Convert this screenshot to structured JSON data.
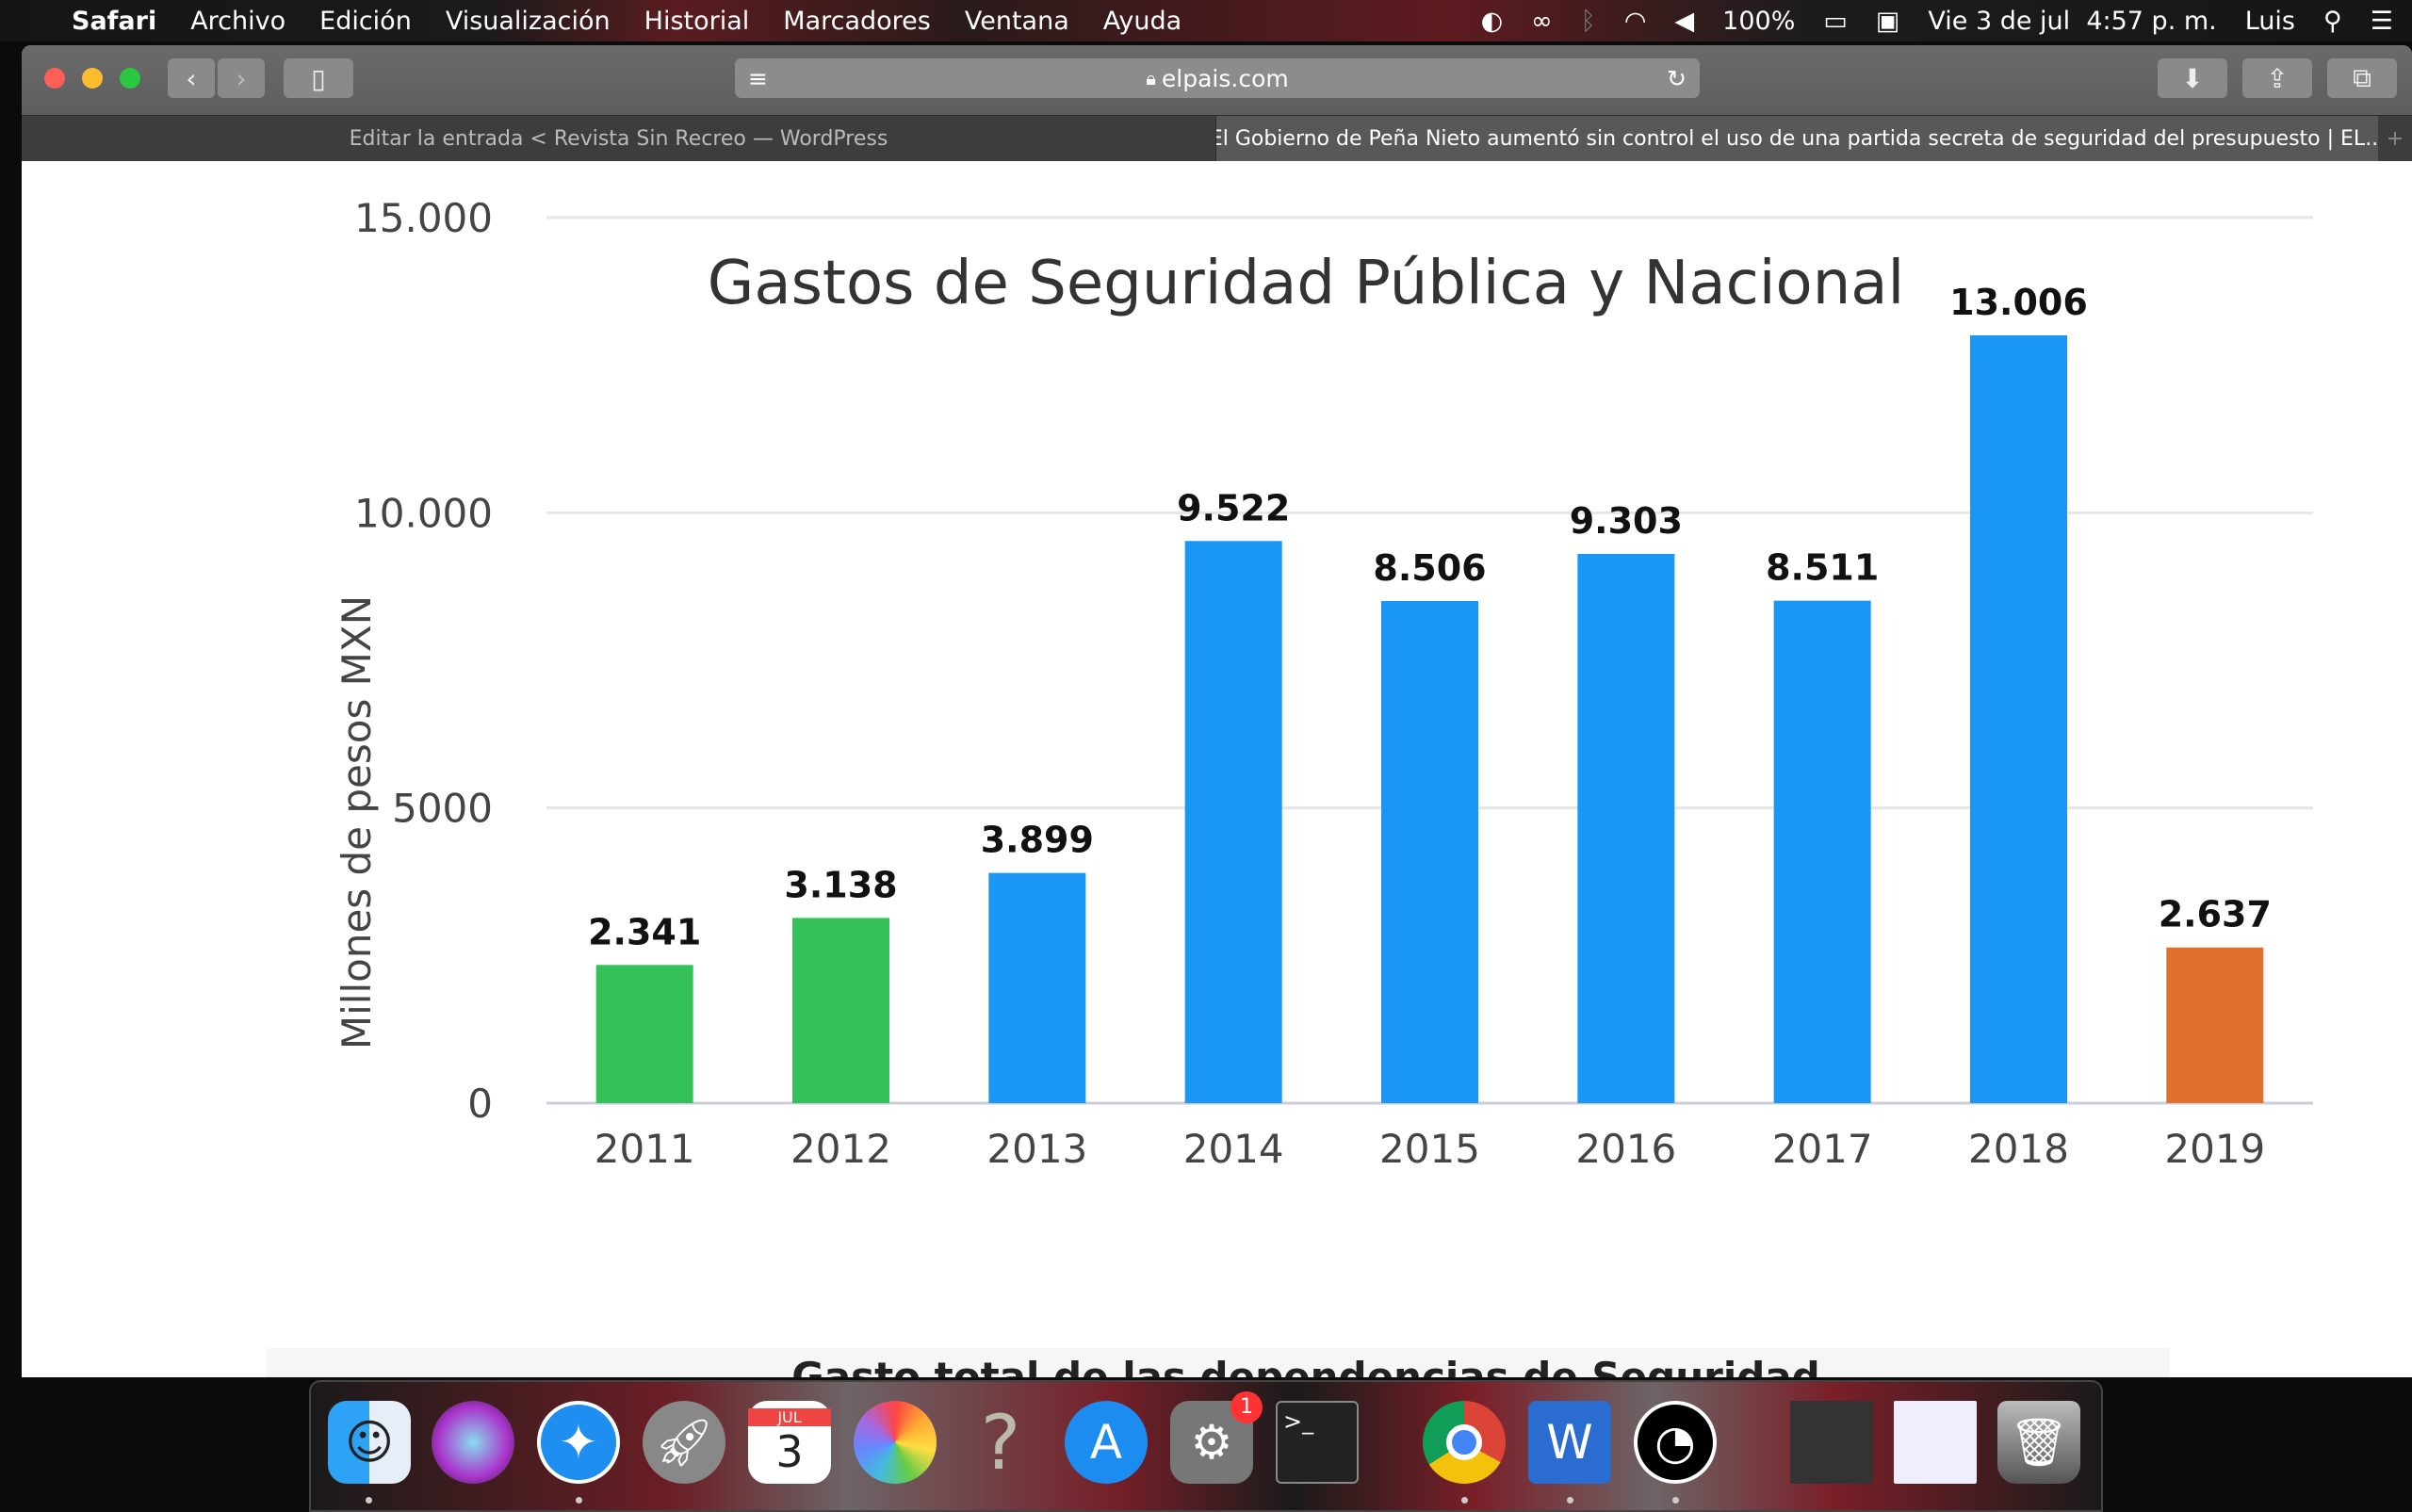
{
  "menubar": {
    "apple": "",
    "app": "Safari",
    "items": [
      "Archivo",
      "Edición",
      "Visualización",
      "Historial",
      "Marcadores",
      "Ventana",
      "Ayuda"
    ],
    "battery": "100%",
    "datetime": "Vie 3 de jul  4:57 p. m.",
    "user": "Luis"
  },
  "toolbar": {
    "url": "elpais.com"
  },
  "tabs": [
    {
      "label": "Editar la entrada < Revista Sin Recreo — WordPress",
      "active": false
    },
    {
      "label": "El Gobierno de Peña Nieto aumentó sin control el uso de una partida secreta de seguridad del presupuesto | EL...",
      "active": true
    }
  ],
  "page": {
    "next_heading": "Gasto total de las dependencias de Seguridad"
  },
  "dock": {
    "items": [
      "Finder",
      "Siri",
      "Safari",
      "Launchpad",
      "Calendario",
      "Fotos",
      "?",
      "App Store",
      "Preferencias del Sistema",
      "Terminal",
      "Chrome",
      "Word",
      "OBS",
      "Trash"
    ],
    "calendar_month": "JUL",
    "calendar_day": "3",
    "badge": "1"
  },
  "chart_data": {
    "type": "bar",
    "title": "Gastos de Seguridad Pública y Nacional",
    "ylabel": "Millones de pesos MXN",
    "xlabel": "",
    "ylim": [
      0,
      15000
    ],
    "yticks": [
      0,
      5000,
      10000,
      15000
    ],
    "ytick_labels": [
      "0",
      "5000",
      "10.000",
      "15.000"
    ],
    "grid": true,
    "categories": [
      "2011",
      "2012",
      "2013",
      "2014",
      "2015",
      "2016",
      "2017",
      "2018",
      "2019"
    ],
    "values": [
      2341,
      3138,
      3899,
      9522,
      8506,
      9303,
      8511,
      13006,
      2637
    ],
    "value_labels": [
      "2.341",
      "3.138",
      "3.899",
      "9.522",
      "8.506",
      "9.303",
      "8.511",
      "13.006",
      "2.637"
    ],
    "colors": [
      "#34c15a",
      "#34c15a",
      "#1a96f5",
      "#1a96f5",
      "#1a96f5",
      "#1a96f5",
      "#1a96f5",
      "#1a96f5",
      "#e0702e"
    ]
  }
}
